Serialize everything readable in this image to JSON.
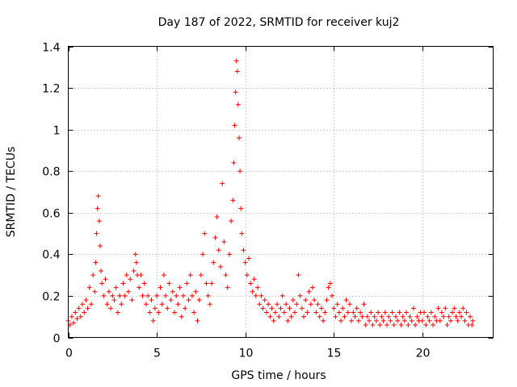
{
  "chart_data": {
    "type": "scatter",
    "title": "Day 187 of 2022, SRMTID for receiver kuj2",
    "xlabel": "GPS time / hours",
    "ylabel": "SRMTID / TECUs",
    "xlim": [
      0,
      24
    ],
    "ylim": [
      0,
      1.4
    ],
    "x_ticks": [
      0,
      5,
      10,
      15,
      20
    ],
    "x_tick_labels": [
      "0",
      "5",
      "10",
      "15",
      "20"
    ],
    "y_ticks": [
      0,
      0.2,
      0.4,
      0.6,
      0.8,
      1.0,
      1.2,
      1.4
    ],
    "y_tick_labels": [
      "0",
      "0.2",
      "0.4",
      "0.6",
      "0.8",
      "1",
      "1.2",
      "1.4"
    ],
    "grid": true,
    "marker": "+",
    "color": "#ff0000",
    "series": [
      {
        "name": "kuj2",
        "points": [
          [
            0.0,
            0.08
          ],
          [
            0.1,
            0.06
          ],
          [
            0.2,
            0.1
          ],
          [
            0.3,
            0.07
          ],
          [
            0.4,
            0.12
          ],
          [
            0.5,
            0.09
          ],
          [
            0.6,
            0.14
          ],
          [
            0.7,
            0.1
          ],
          [
            0.8,
            0.16
          ],
          [
            0.9,
            0.12
          ],
          [
            1.0,
            0.18
          ],
          [
            1.1,
            0.14
          ],
          [
            1.2,
            0.24
          ],
          [
            1.3,
            0.16
          ],
          [
            1.4,
            0.3
          ],
          [
            1.5,
            0.22
          ],
          [
            1.55,
            0.36
          ],
          [
            1.6,
            0.5
          ],
          [
            1.65,
            0.62
          ],
          [
            1.7,
            0.68
          ],
          [
            1.75,
            0.56
          ],
          [
            1.8,
            0.44
          ],
          [
            1.85,
            0.32
          ],
          [
            1.9,
            0.26
          ],
          [
            2.0,
            0.2
          ],
          [
            2.1,
            0.28
          ],
          [
            2.2,
            0.16
          ],
          [
            2.3,
            0.22
          ],
          [
            2.4,
            0.14
          ],
          [
            2.5,
            0.2
          ],
          [
            2.6,
            0.18
          ],
          [
            2.7,
            0.24
          ],
          [
            2.8,
            0.12
          ],
          [
            2.9,
            0.2
          ],
          [
            3.0,
            0.16
          ],
          [
            3.1,
            0.26
          ],
          [
            3.2,
            0.2
          ],
          [
            3.3,
            0.3
          ],
          [
            3.4,
            0.22
          ],
          [
            3.5,
            0.28
          ],
          [
            3.6,
            0.18
          ],
          [
            3.7,
            0.32
          ],
          [
            3.8,
            0.4
          ],
          [
            3.85,
            0.36
          ],
          [
            3.9,
            0.3
          ],
          [
            4.0,
            0.24
          ],
          [
            4.1,
            0.3
          ],
          [
            4.2,
            0.2
          ],
          [
            4.3,
            0.26
          ],
          [
            4.4,
            0.16
          ],
          [
            4.5,
            0.2
          ],
          [
            4.6,
            0.12
          ],
          [
            4.7,
            0.18
          ],
          [
            4.8,
            0.08
          ],
          [
            4.9,
            0.14
          ],
          [
            5.0,
            0.2
          ],
          [
            5.1,
            0.12
          ],
          [
            5.2,
            0.24
          ],
          [
            5.3,
            0.16
          ],
          [
            5.4,
            0.3
          ],
          [
            5.5,
            0.2
          ],
          [
            5.6,
            0.14
          ],
          [
            5.7,
            0.26
          ],
          [
            5.8,
            0.18
          ],
          [
            5.9,
            0.22
          ],
          [
            6.0,
            0.12
          ],
          [
            6.1,
            0.2
          ],
          [
            6.2,
            0.16
          ],
          [
            6.3,
            0.24
          ],
          [
            6.4,
            0.1
          ],
          [
            6.5,
            0.2
          ],
          [
            6.6,
            0.14
          ],
          [
            6.7,
            0.26
          ],
          [
            6.8,
            0.18
          ],
          [
            6.9,
            0.3
          ],
          [
            7.0,
            0.2
          ],
          [
            7.1,
            0.12
          ],
          [
            7.2,
            0.22
          ],
          [
            7.3,
            0.08
          ],
          [
            7.4,
            0.18
          ],
          [
            7.5,
            0.3
          ],
          [
            7.6,
            0.4
          ],
          [
            7.7,
            0.5
          ],
          [
            7.8,
            0.26
          ],
          [
            7.9,
            0.2
          ],
          [
            8.0,
            0.16
          ],
          [
            8.1,
            0.26
          ],
          [
            8.2,
            0.36
          ],
          [
            8.3,
            0.48
          ],
          [
            8.4,
            0.58
          ],
          [
            8.5,
            0.42
          ],
          [
            8.6,
            0.34
          ],
          [
            8.7,
            0.74
          ],
          [
            8.8,
            0.46
          ],
          [
            8.9,
            0.3
          ],
          [
            9.0,
            0.24
          ],
          [
            9.1,
            0.4
          ],
          [
            9.2,
            0.56
          ],
          [
            9.3,
            0.66
          ],
          [
            9.35,
            0.84
          ],
          [
            9.4,
            1.02
          ],
          [
            9.45,
            1.18
          ],
          [
            9.5,
            1.33
          ],
          [
            9.55,
            1.28
          ],
          [
            9.6,
            1.12
          ],
          [
            9.65,
            0.96
          ],
          [
            9.7,
            0.8
          ],
          [
            9.75,
            0.62
          ],
          [
            9.8,
            0.5
          ],
          [
            9.9,
            0.42
          ],
          [
            10.0,
            0.36
          ],
          [
            10.1,
            0.3
          ],
          [
            10.2,
            0.38
          ],
          [
            10.3,
            0.26
          ],
          [
            10.4,
            0.22
          ],
          [
            10.5,
            0.28
          ],
          [
            10.6,
            0.2
          ],
          [
            10.7,
            0.24
          ],
          [
            10.8,
            0.16
          ],
          [
            10.9,
            0.2
          ],
          [
            11.0,
            0.14
          ],
          [
            11.1,
            0.18
          ],
          [
            11.2,
            0.12
          ],
          [
            11.3,
            0.16
          ],
          [
            11.4,
            0.1
          ],
          [
            11.5,
            0.14
          ],
          [
            11.6,
            0.08
          ],
          [
            11.7,
            0.12
          ],
          [
            11.8,
            0.16
          ],
          [
            11.9,
            0.1
          ],
          [
            12.0,
            0.14
          ],
          [
            12.1,
            0.2
          ],
          [
            12.2,
            0.12
          ],
          [
            12.3,
            0.16
          ],
          [
            12.4,
            0.08
          ],
          [
            12.5,
            0.14
          ],
          [
            12.6,
            0.1
          ],
          [
            12.7,
            0.18
          ],
          [
            12.8,
            0.12
          ],
          [
            12.9,
            0.16
          ],
          [
            13.0,
            0.3
          ],
          [
            13.1,
            0.2
          ],
          [
            13.2,
            0.14
          ],
          [
            13.3,
            0.1
          ],
          [
            13.4,
            0.18
          ],
          [
            13.5,
            0.12
          ],
          [
            13.6,
            0.22
          ],
          [
            13.7,
            0.16
          ],
          [
            13.8,
            0.24
          ],
          [
            13.9,
            0.18
          ],
          [
            14.0,
            0.12
          ],
          [
            14.1,
            0.16
          ],
          [
            14.2,
            0.1
          ],
          [
            14.3,
            0.14
          ],
          [
            14.4,
            0.08
          ],
          [
            14.5,
            0.12
          ],
          [
            14.6,
            0.18
          ],
          [
            14.7,
            0.24
          ],
          [
            14.8,
            0.26
          ],
          [
            14.9,
            0.2
          ],
          [
            15.0,
            0.14
          ],
          [
            15.1,
            0.1
          ],
          [
            15.2,
            0.16
          ],
          [
            15.3,
            0.12
          ],
          [
            15.4,
            0.08
          ],
          [
            15.5,
            0.14
          ],
          [
            15.6,
            0.1
          ],
          [
            15.7,
            0.18
          ],
          [
            15.8,
            0.12
          ],
          [
            15.9,
            0.16
          ],
          [
            16.0,
            0.08
          ],
          [
            16.1,
            0.12
          ],
          [
            16.2,
            0.1
          ],
          [
            16.3,
            0.14
          ],
          [
            16.4,
            0.08
          ],
          [
            16.5,
            0.12
          ],
          [
            16.6,
            0.1
          ],
          [
            16.7,
            0.16
          ],
          [
            16.8,
            0.06
          ],
          [
            16.9,
            0.1
          ],
          [
            17.0,
            0.08
          ],
          [
            17.1,
            0.12
          ],
          [
            17.2,
            0.06
          ],
          [
            17.3,
            0.1
          ],
          [
            17.4,
            0.08
          ],
          [
            17.5,
            0.12
          ],
          [
            17.6,
            0.06
          ],
          [
            17.7,
            0.1
          ],
          [
            17.8,
            0.08
          ],
          [
            17.9,
            0.12
          ],
          [
            18.0,
            0.06
          ],
          [
            18.1,
            0.1
          ],
          [
            18.2,
            0.08
          ],
          [
            18.3,
            0.12
          ],
          [
            18.4,
            0.06
          ],
          [
            18.5,
            0.1
          ],
          [
            18.6,
            0.08
          ],
          [
            18.7,
            0.12
          ],
          [
            18.8,
            0.06
          ],
          [
            18.9,
            0.1
          ],
          [
            19.0,
            0.08
          ],
          [
            19.1,
            0.12
          ],
          [
            19.2,
            0.06
          ],
          [
            19.3,
            0.1
          ],
          [
            19.4,
            0.08
          ],
          [
            19.5,
            0.14
          ],
          [
            19.6,
            0.06
          ],
          [
            19.7,
            0.1
          ],
          [
            19.8,
            0.08
          ],
          [
            19.9,
            0.12
          ],
          [
            20.0,
            0.08
          ],
          [
            20.1,
            0.12
          ],
          [
            20.2,
            0.06
          ],
          [
            20.3,
            0.1
          ],
          [
            20.4,
            0.08
          ],
          [
            20.5,
            0.12
          ],
          [
            20.6,
            0.06
          ],
          [
            20.7,
            0.1
          ],
          [
            20.8,
            0.08
          ],
          [
            20.9,
            0.14
          ],
          [
            21.0,
            0.08
          ],
          [
            21.1,
            0.12
          ],
          [
            21.2,
            0.1
          ],
          [
            21.3,
            0.14
          ],
          [
            21.4,
            0.06
          ],
          [
            21.5,
            0.1
          ],
          [
            21.6,
            0.08
          ],
          [
            21.7,
            0.12
          ],
          [
            21.8,
            0.14
          ],
          [
            21.9,
            0.1
          ],
          [
            22.0,
            0.08
          ],
          [
            22.1,
            0.12
          ],
          [
            22.2,
            0.1
          ],
          [
            22.3,
            0.14
          ],
          [
            22.4,
            0.08
          ],
          [
            22.5,
            0.12
          ],
          [
            22.6,
            0.06
          ],
          [
            22.7,
            0.1
          ],
          [
            22.8,
            0.06
          ],
          [
            22.85,
            0.08
          ]
        ]
      }
    ]
  }
}
